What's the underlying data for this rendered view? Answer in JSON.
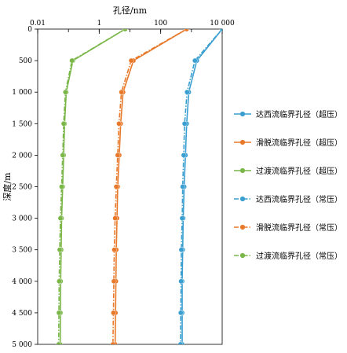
{
  "chart_data": {
    "type": "line",
    "title": "",
    "xlabel": "孔径/nm",
    "ylabel": "深度/m",
    "x_scale": "log",
    "xlim": [
      0.01,
      10000
    ],
    "ylim": [
      0,
      5000
    ],
    "y_inverted": true,
    "x_ticks": [
      0.01,
      1,
      100,
      10000
    ],
    "x_tick_labels": [
      "0.01",
      "1",
      "100",
      "10 000"
    ],
    "y_ticks": [
      0,
      500,
      1000,
      1500,
      2000,
      2500,
      3000,
      3500,
      4000,
      4500,
      5000
    ],
    "y_tick_labels": [
      "0",
      "500",
      "1 000",
      "1 500",
      "2 000",
      "2 500",
      "3 000",
      "3 500",
      "4 000",
      "4 500",
      "5 000"
    ],
    "grid": false,
    "legend_position": "right",
    "series": [
      {
        "name": "达西流临界孔径（超压）",
        "color": "#3a9fd0",
        "dash": "solid",
        "depth": [
          0,
          500,
          1000,
          1500,
          2000,
          2500,
          3000,
          3500,
          4000,
          4500,
          5000
        ],
        "x": [
          10000,
          1500,
          820,
          700,
          640,
          580,
          540,
          520,
          500,
          500,
          500
        ]
      },
      {
        "name": "滑脱流临界孔径（超压）",
        "color": "#e8792a",
        "dash": "solid",
        "depth": [
          0,
          500,
          1000,
          1500,
          2000,
          2500,
          3000,
          3500,
          4000,
          4500,
          5000
        ],
        "x": [
          700,
          13,
          6,
          5,
          4.5,
          4,
          3.8,
          3.6,
          3.5,
          3.4,
          3.3
        ]
      },
      {
        "name": "过渡流临界孔径（超压）",
        "color": "#7ab648",
        "dash": "solid",
        "depth": [
          0,
          500,
          1000,
          1500,
          2000,
          2500,
          3000,
          3500,
          4000,
          4500,
          5000
        ],
        "x": [
          7,
          0.14,
          0.085,
          0.075,
          0.07,
          0.065,
          0.06,
          0.058,
          0.056,
          0.055,
          0.054
        ]
      },
      {
        "name": "达西流临界孔径（常压）",
        "color": "#3a9fd0",
        "dash": "dashdot",
        "depth": [
          0,
          500,
          1000,
          1500,
          2000,
          2500,
          3000,
          3500,
          4000,
          4500,
          5000
        ],
        "x": [
          10000,
          1300,
          720,
          600,
          560,
          520,
          500,
          470,
          460,
          450,
          440
        ]
      },
      {
        "name": "滑脱流临界孔径（常压）",
        "color": "#e8792a",
        "dash": "dashdot",
        "depth": [
          0,
          500,
          1000,
          1500,
          2000,
          2500,
          3000,
          3500,
          4000,
          4500,
          5000
        ],
        "x": [
          700,
          11,
          5.3,
          4.4,
          4,
          3.6,
          3.3,
          3.1,
          3,
          2.9,
          2.8
        ]
      },
      {
        "name": "过渡流临界孔径（常压）",
        "color": "#7ab648",
        "dash": "dashdot",
        "depth": [
          0,
          500,
          1000,
          1500,
          2000,
          2500,
          3000,
          3500,
          4000,
          4500,
          5000
        ],
        "x": [
          7,
          0.13,
          0.08,
          0.07,
          0.065,
          0.06,
          0.055,
          0.052,
          0.05,
          0.049,
          0.048
        ]
      }
    ]
  }
}
